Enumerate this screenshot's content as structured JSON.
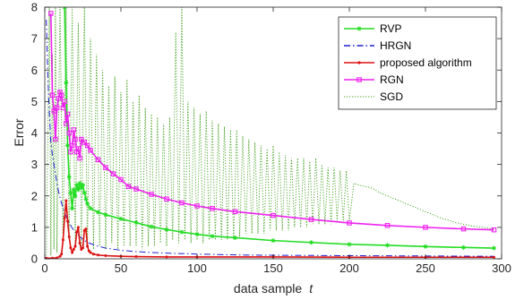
{
  "chart_data": {
    "type": "line",
    "xlabel": "data sample",
    "xlabel_var": "t",
    "ylabel": "Error",
    "xlim": [
      0,
      300
    ],
    "ylim": [
      0,
      8
    ],
    "xticks": [
      0,
      50,
      100,
      150,
      200,
      250,
      300
    ],
    "yticks": [
      0,
      1,
      2,
      3,
      4,
      5,
      6,
      7,
      8
    ],
    "grid": false,
    "legend_position": "top-right",
    "series": [
      {
        "name": "RVP",
        "color": "#22dd22",
        "line_style": "solid",
        "marker": "star",
        "points": [
          [
            13,
            8
          ],
          [
            14,
            5.6
          ],
          [
            15,
            3.6
          ],
          [
            16,
            2.6
          ],
          [
            17,
            2.1
          ],
          [
            18,
            1.6
          ],
          [
            19,
            2.2
          ],
          [
            20,
            2.0
          ],
          [
            21,
            2.35
          ],
          [
            22,
            2.2
          ],
          [
            23,
            2.4
          ],
          [
            24,
            2.25
          ],
          [
            25,
            2.35
          ],
          [
            26,
            2.1
          ],
          [
            27,
            1.9
          ],
          [
            28,
            1.75
          ],
          [
            30,
            1.6
          ],
          [
            35,
            1.48
          ],
          [
            40,
            1.4
          ],
          [
            50,
            1.27
          ],
          [
            60,
            1.15
          ],
          [
            70,
            1.02
          ],
          [
            80,
            0.93
          ],
          [
            90,
            0.85
          ],
          [
            100,
            0.78
          ],
          [
            110,
            0.72
          ],
          [
            125,
            0.67
          ],
          [
            150,
            0.58
          ],
          [
            175,
            0.52
          ],
          [
            200,
            0.46
          ],
          [
            225,
            0.43
          ],
          [
            250,
            0.39
          ],
          [
            275,
            0.36
          ],
          [
            295,
            0.34
          ]
        ]
      },
      {
        "name": "HRGN",
        "color": "#1f1fd0",
        "line_style": "dashdot",
        "marker": "none",
        "points": [
          [
            1,
            7.6
          ],
          [
            2,
            5.8
          ],
          [
            3,
            4.6
          ],
          [
            4,
            3.7
          ],
          [
            5,
            3.3
          ],
          [
            6,
            3.0
          ],
          [
            7,
            2.7
          ],
          [
            8,
            2.4
          ],
          [
            9,
            2.15
          ],
          [
            10,
            1.95
          ],
          [
            12,
            1.6
          ],
          [
            14,
            1.35
          ],
          [
            16,
            1.15
          ],
          [
            18,
            0.98
          ],
          [
            20,
            0.85
          ],
          [
            23,
            0.7
          ],
          [
            26,
            0.58
          ],
          [
            30,
            0.48
          ],
          [
            35,
            0.4
          ],
          [
            40,
            0.34
          ],
          [
            50,
            0.27
          ],
          [
            60,
            0.23
          ],
          [
            70,
            0.2
          ],
          [
            80,
            0.18
          ],
          [
            100,
            0.15
          ],
          [
            130,
            0.12
          ],
          [
            160,
            0.11
          ],
          [
            200,
            0.1
          ],
          [
            250,
            0.09
          ],
          [
            295,
            0.08
          ]
        ]
      },
      {
        "name": "proposed algorithm",
        "color": "#dd1111",
        "line_style": "solid",
        "marker": "dot",
        "points": [
          [
            1,
            0.02
          ],
          [
            5,
            0.02
          ],
          [
            8,
            0.03
          ],
          [
            10,
            0.08
          ],
          [
            11,
            0.15
          ],
          [
            12,
            0.6
          ],
          [
            13,
            1.3
          ],
          [
            14,
            1.85
          ],
          [
            15,
            1.2
          ],
          [
            16,
            0.7
          ],
          [
            17,
            0.35
          ],
          [
            18,
            0.2
          ],
          [
            19,
            0.3
          ],
          [
            20,
            0.4
          ],
          [
            21,
            0.85
          ],
          [
            22,
            1.0
          ],
          [
            23,
            0.5
          ],
          [
            24,
            0.3
          ],
          [
            25,
            0.35
          ],
          [
            26,
            0.9
          ],
          [
            27,
            0.95
          ],
          [
            28,
            0.4
          ],
          [
            29,
            0.25
          ],
          [
            30,
            0.2
          ],
          [
            32,
            0.15
          ],
          [
            35,
            0.12
          ],
          [
            40,
            0.1
          ],
          [
            50,
            0.08
          ],
          [
            60,
            0.07
          ],
          [
            80,
            0.06
          ],
          [
            100,
            0.06
          ],
          [
            150,
            0.06
          ],
          [
            200,
            0.05
          ],
          [
            250,
            0.05
          ],
          [
            295,
            0.05
          ]
        ]
      },
      {
        "name": "RGN",
        "color": "#ee22ee",
        "line_style": "solid",
        "marker": "square",
        "points": [
          [
            4,
            7.8
          ],
          [
            5,
            5.2
          ],
          [
            6,
            4.7
          ],
          [
            7,
            3.8
          ],
          [
            8,
            4.8
          ],
          [
            9,
            5.1
          ],
          [
            10,
            5.3
          ],
          [
            11,
            5.2
          ],
          [
            12,
            4.8
          ],
          [
            13,
            5.0
          ],
          [
            14,
            4.3
          ],
          [
            15,
            4.6
          ],
          [
            16,
            4.0
          ],
          [
            17,
            3.4
          ],
          [
            18,
            3.6
          ],
          [
            19,
            4.1
          ],
          [
            20,
            3.8
          ],
          [
            21,
            3.4
          ],
          [
            22,
            3.5
          ],
          [
            23,
            3.2
          ],
          [
            24,
            3.8
          ],
          [
            26,
            3.7
          ],
          [
            28,
            3.6
          ],
          [
            30,
            3.45
          ],
          [
            35,
            3.15
          ],
          [
            40,
            2.9
          ],
          [
            45,
            2.7
          ],
          [
            50,
            2.52
          ],
          [
            55,
            2.3
          ],
          [
            60,
            2.22
          ],
          [
            70,
            2.05
          ],
          [
            80,
            1.9
          ],
          [
            90,
            1.78
          ],
          [
            100,
            1.68
          ],
          [
            110,
            1.6
          ],
          [
            125,
            1.5
          ],
          [
            150,
            1.38
          ],
          [
            175,
            1.25
          ],
          [
            200,
            1.14
          ],
          [
            225,
            1.06
          ],
          [
            250,
            1.0
          ],
          [
            275,
            0.95
          ],
          [
            295,
            0.92
          ]
        ]
      },
      {
        "name": "SGD",
        "color": "#3c9c18",
        "line_style": "dotted",
        "marker": "none",
        "points": [
          [
            1,
            0.02
          ],
          [
            3,
            8
          ],
          [
            4,
            0.1
          ],
          [
            5,
            6.5
          ],
          [
            6,
            0.3
          ],
          [
            7,
            8
          ],
          [
            8,
            0.2
          ],
          [
            10,
            8
          ],
          [
            12,
            0.5
          ],
          [
            14,
            8
          ],
          [
            16,
            0.6
          ],
          [
            18,
            8
          ],
          [
            20,
            0.4
          ],
          [
            22,
            7.5
          ],
          [
            24,
            0.3
          ],
          [
            26,
            8
          ],
          [
            28,
            0.4
          ],
          [
            30,
            7.0
          ],
          [
            32,
            0.3
          ],
          [
            34,
            6.5
          ],
          [
            36,
            0.4
          ],
          [
            38,
            6.0
          ],
          [
            40,
            0.3
          ],
          [
            42,
            5.5
          ],
          [
            44,
            0.5
          ],
          [
            46,
            5.8
          ],
          [
            48,
            0.3
          ],
          [
            50,
            5.3
          ],
          [
            52,
            0.4
          ],
          [
            54,
            5.7
          ],
          [
            56,
            0.4
          ],
          [
            58,
            5.0
          ],
          [
            60,
            0.4
          ],
          [
            62,
            5.2
          ],
          [
            64,
            0.3
          ],
          [
            66,
            4.8
          ],
          [
            68,
            0.4
          ],
          [
            70,
            4.6
          ],
          [
            72,
            0.4
          ],
          [
            74,
            4.5
          ],
          [
            76,
            0.5
          ],
          [
            78,
            4.3
          ],
          [
            80,
            0.4
          ],
          [
            82,
            4.5
          ],
          [
            84,
            0.6
          ],
          [
            86,
            7.2
          ],
          [
            88,
            0.5
          ],
          [
            90,
            8
          ],
          [
            92,
            0.6
          ],
          [
            94,
            5.0
          ],
          [
            96,
            0.5
          ],
          [
            98,
            4.8
          ],
          [
            100,
            0.6
          ],
          [
            102,
            4.6
          ],
          [
            104,
            0.5
          ],
          [
            106,
            4.7
          ],
          [
            108,
            0.6
          ],
          [
            110,
            4.4
          ],
          [
            112,
            0.6
          ],
          [
            114,
            4.3
          ],
          [
            116,
            0.6
          ],
          [
            118,
            4.2
          ],
          [
            120,
            0.6
          ],
          [
            122,
            4.1
          ],
          [
            124,
            0.6
          ],
          [
            126,
            4.1
          ],
          [
            128,
            0.7
          ],
          [
            130,
            3.9
          ],
          [
            132,
            0.8
          ],
          [
            134,
            3.8
          ],
          [
            136,
            0.8
          ],
          [
            138,
            3.7
          ],
          [
            140,
            0.8
          ],
          [
            142,
            3.6
          ],
          [
            144,
            0.8
          ],
          [
            146,
            3.5
          ],
          [
            148,
            0.9
          ],
          [
            150,
            3.6
          ],
          [
            152,
            0.9
          ],
          [
            154,
            3.4
          ],
          [
            156,
            0.9
          ],
          [
            158,
            3.3
          ],
          [
            160,
            0.9
          ],
          [
            162,
            3.2
          ],
          [
            164,
            1.0
          ],
          [
            166,
            3.2
          ],
          [
            168,
            1.0
          ],
          [
            170,
            3.2
          ],
          [
            172,
            1.0
          ],
          [
            174,
            3.1
          ],
          [
            176,
            1.1
          ],
          [
            178,
            3.2
          ],
          [
            180,
            1.1
          ],
          [
            182,
            3.0
          ],
          [
            184,
            1.1
          ],
          [
            186,
            2.9
          ],
          [
            188,
            1.1
          ],
          [
            190,
            2.9
          ],
          [
            192,
            1.2
          ],
          [
            194,
            2.8
          ],
          [
            196,
            1.2
          ],
          [
            198,
            2.8
          ],
          [
            200,
            1.2
          ],
          [
            203,
            2.4
          ],
          [
            206,
            2.35
          ],
          [
            210,
            2.3
          ],
          [
            215,
            2.25
          ],
          [
            220,
            2.1
          ],
          [
            225,
            2.0
          ],
          [
            230,
            1.9
          ],
          [
            240,
            1.7
          ],
          [
            250,
            1.5
          ],
          [
            260,
            1.3
          ],
          [
            270,
            1.15
          ],
          [
            280,
            1.05
          ],
          [
            295,
            0.95
          ]
        ]
      }
    ]
  }
}
